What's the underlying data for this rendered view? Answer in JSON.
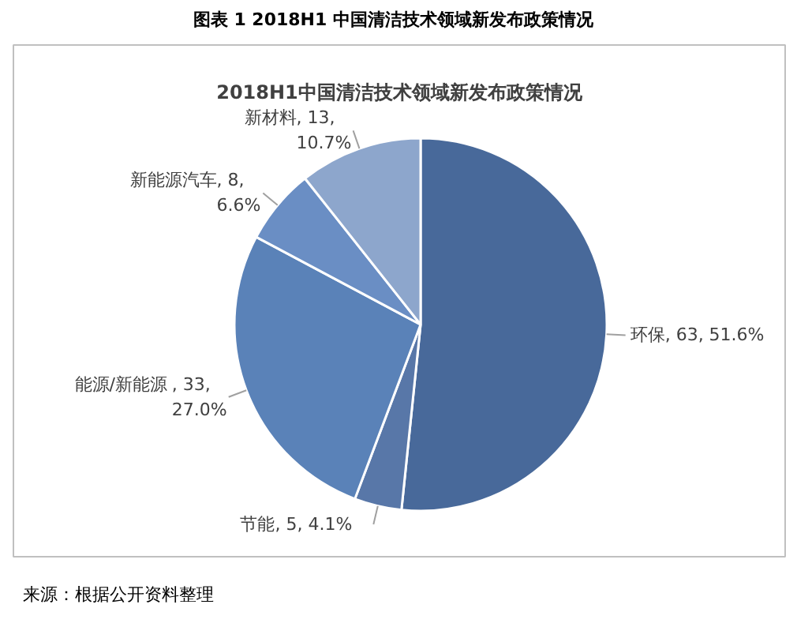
{
  "chart_data": {
    "type": "pie",
    "title": "图表 1   2018H1 中国清洁技术领域新发布政策情况",
    "subtitle": "2018H1中国清洁技术领域新发布政策情况",
    "categories": [
      "环保",
      "节能",
      "能源/新能源",
      "新能源汽车",
      "新材料"
    ],
    "values": [
      63,
      5,
      33,
      8,
      13
    ],
    "colors": [
      "#48699a",
      "#5877a8",
      "#5a82b8",
      "#6a8ec4",
      "#8da6cc"
    ],
    "value_labels": [
      ", 63, 51.6%",
      ", 5, 4.1%",
      ", 33,\n27.0%",
      ", 8,\n6.6%",
      ", 13,\n10.7%"
    ],
    "annotations": [
      "来源：根据公开资料整理"
    ],
    "legend": false
  }
}
